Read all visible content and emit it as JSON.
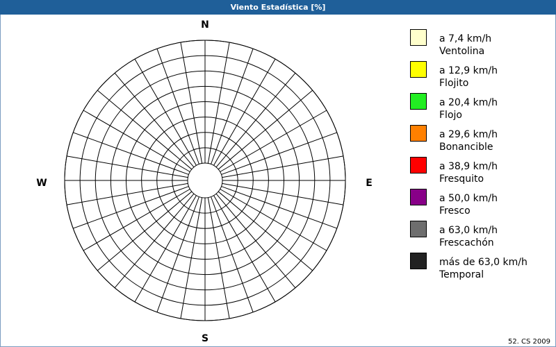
{
  "chart_data": {
    "type": "windrose",
    "title": "Viento Estadística [%]",
    "directions": [
      "N",
      "E",
      "S",
      "W"
    ],
    "series": [
      {
        "name": "a 7,4 km/h",
        "description": "Ventolina",
        "color": "#ffffcc"
      },
      {
        "name": "a 12,9 km/h",
        "description": "Flojito",
        "color": "#ffff00"
      },
      {
        "name": "a 20,4 km/h",
        "description": "Flojo",
        "color": "#22ee22"
      },
      {
        "name": "a 29,6 km/h",
        "description": "Bonancible",
        "color": "#ff8000"
      },
      {
        "name": "a 38,9 km/h",
        "description": "Fresquito",
        "color": "#ff0000"
      },
      {
        "name": "a 50,0 km/h",
        "description": "Fresco",
        "color": "#880088"
      },
      {
        "name": "a 63,0 km/h",
        "description": "Frescachón",
        "color": "#6e6e6e"
      },
      {
        "name": "más de 63,0 km/h",
        "description": "Temporal",
        "color": "#222222"
      }
    ],
    "footer": "52. CS 2009"
  }
}
